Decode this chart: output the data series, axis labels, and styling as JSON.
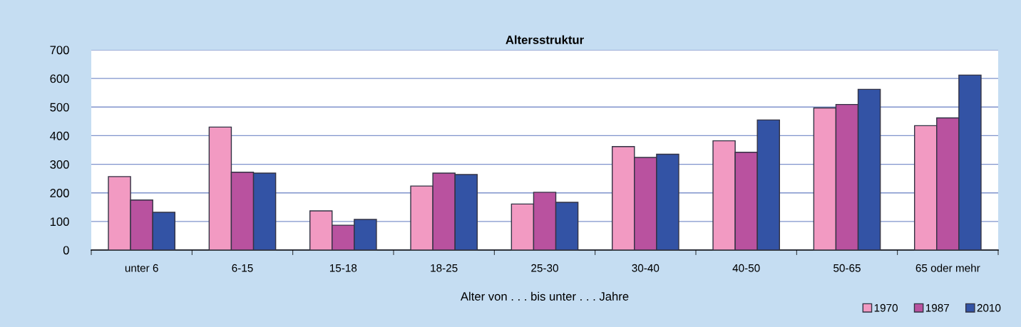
{
  "chart_data": {
    "type": "bar",
    "title": "Altersstruktur",
    "xlabel": "Alter von . . . bis unter . . . Jahre",
    "categories": [
      "unter 6",
      "6-15",
      "15-18",
      "18-25",
      "25-30",
      "30-40",
      "40-50",
      "50-65",
      "65 oder mehr"
    ],
    "series": [
      {
        "name": "1970",
        "color": "#f29ac2",
        "values": [
          257,
          430,
          137,
          224,
          161,
          362,
          382,
          497,
          435
        ]
      },
      {
        "name": "1987",
        "color": "#b9529f",
        "values": [
          175,
          272,
          87,
          269,
          202,
          324,
          342,
          509,
          462
        ]
      },
      {
        "name": "2010",
        "color": "#3353a5",
        "values": [
          132,
          269,
          107,
          264,
          167,
          335,
          455,
          562,
          612
        ]
      }
    ],
    "ylim": [
      0,
      700
    ],
    "yticks": [
      0,
      100,
      200,
      300,
      400,
      500,
      600,
      700
    ],
    "grid": "y",
    "legend": "bottom right"
  }
}
